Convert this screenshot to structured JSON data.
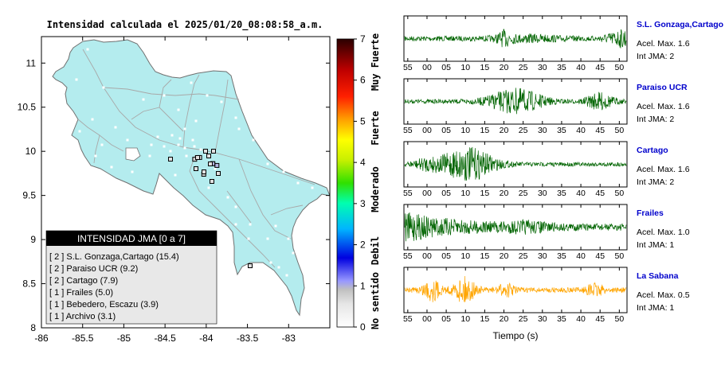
{
  "map": {
    "title": "Intensidad calculada el 2025/01/20_08:08:58_a.m.",
    "x_ticks": [
      "-86",
      "-85.5",
      "-85",
      "-84.5",
      "-84",
      "-83.5",
      "-83"
    ],
    "y_ticks": [
      "11",
      "10.5",
      "10",
      "9.5",
      "9",
      "8.5",
      "8"
    ],
    "xlim": [
      -86,
      -82.5
    ],
    "ylim": [
      8,
      11.3
    ],
    "land_color": "#b4ecee",
    "legend": {
      "title": "INTENSIDAD JMA [0 a 7]",
      "items": [
        "[ 2 ]  S.L. Gonzaga,Cartago (15.4)",
        "[ 2 ]  Paraiso UCR (9.2)",
        "[ 2 ]  Cartago (7.9)",
        "[ 1 ]  Frailes (5.0)",
        "[ 1 ]  Bebedero, Escazu (3.9)",
        "[ 1 ]  Archivo (3.1)"
      ]
    }
  },
  "colorbar": {
    "ticks": [
      "7",
      "6",
      "5",
      "4",
      "3",
      "2",
      "1",
      "0"
    ],
    "labels": [
      "Muy Fuerte",
      "Fuerte",
      "Moderado",
      "Debil",
      "No sentido"
    ]
  },
  "traces": {
    "x_ticks": [
      "55",
      "00",
      "05",
      "10",
      "15",
      "20",
      "25",
      "30",
      "35",
      "40",
      "45",
      "50"
    ],
    "xlabel": "Tiempo (s)",
    "stations": [
      {
        "name": "S.L. Gonzaga,Cartago",
        "accel": "Acel. Max. 1.6",
        "jma": "Int JMA: 2",
        "color": "#006400"
      },
      {
        "name": "Paraiso UCR",
        "accel": "Acel. Max. 1.6",
        "jma": "Int JMA: 2",
        "color": "#006400"
      },
      {
        "name": "Cartago",
        "accel": "Acel. Max. 1.6",
        "jma": "Int JMA: 2",
        "color": "#006400"
      },
      {
        "name": "Frailes",
        "accel": "Acel. Max. 1.0",
        "jma": "Int JMA: 1",
        "color": "#006400"
      },
      {
        "name": "La Sabana",
        "accel": "Acel. Max. 0.5",
        "jma": "Int JMA: 1",
        "color": "#ffa500"
      }
    ]
  },
  "chart_data": [
    {
      "type": "scatter",
      "title": "Intensidad calculada el 2025/01/20_08:08:58_a.m.",
      "xlim": [
        -86,
        -82.5
      ],
      "ylim": [
        8,
        11.3
      ],
      "series": [
        {
          "name": "S.L. Gonzaga,Cartago",
          "x": [
            -83.92
          ],
          "y": [
            9.86
          ],
          "value": 2
        },
        {
          "name": "Paraiso UCR",
          "x": [
            -83.87
          ],
          "y": [
            9.84
          ],
          "value": 2
        },
        {
          "name": "Cartago",
          "x": [
            -83.92
          ],
          "y": [
            9.86
          ],
          "value": 2
        },
        {
          "name": "Frailes",
          "x": [
            -84.03
          ],
          "y": [
            9.74
          ],
          "value": 1
        },
        {
          "name": "Bebedero, Escazu",
          "x": [
            -84.14
          ],
          "y": [
            9.91
          ],
          "value": 1
        },
        {
          "name": "Archivo",
          "x": [
            -84.08
          ],
          "y": [
            9.93
          ],
          "value": 1
        }
      ]
    },
    {
      "type": "line",
      "xlabel": "Tiempo (s)",
      "x": [
        "55",
        "00",
        "05",
        "10",
        "15",
        "20",
        "25",
        "30",
        "35",
        "40",
        "45",
        "50"
      ],
      "series": [
        {
          "name": "S.L. Gonzaga,Cartago",
          "peak": 1.6,
          "jma": 2
        },
        {
          "name": "Paraiso UCR",
          "peak": 1.6,
          "jma": 2
        },
        {
          "name": "Cartago",
          "peak": 1.6,
          "jma": 2
        },
        {
          "name": "Frailes",
          "peak": 1.0,
          "jma": 1
        },
        {
          "name": "La Sabana",
          "peak": 0.5,
          "jma": 1
        }
      ]
    }
  ]
}
